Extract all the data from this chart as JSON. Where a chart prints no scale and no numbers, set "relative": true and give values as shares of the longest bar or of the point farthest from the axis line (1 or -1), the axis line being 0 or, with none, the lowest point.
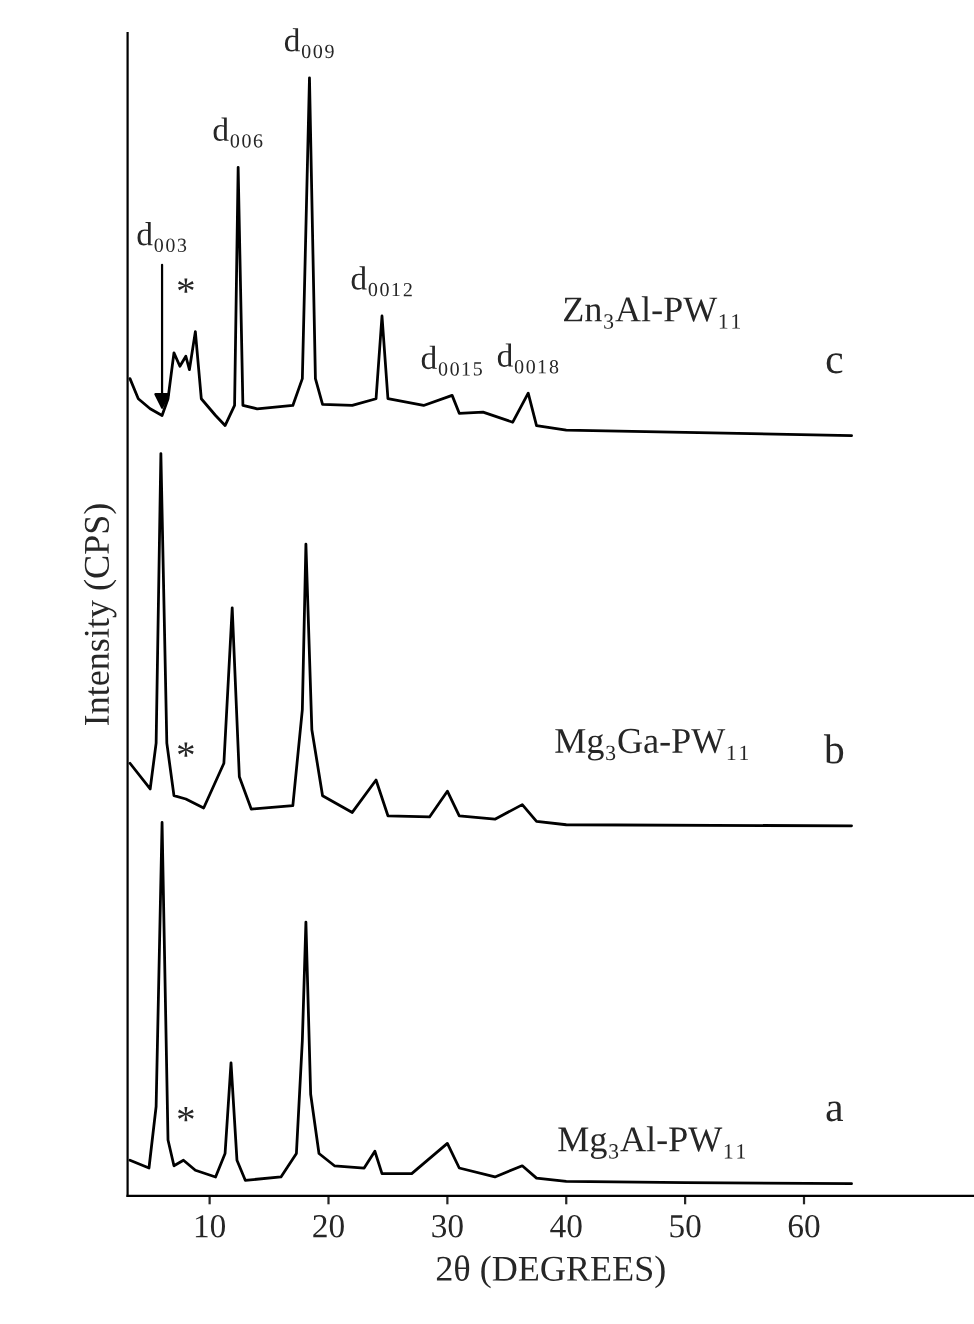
{
  "chart_data": {
    "type": "line",
    "relative": true,
    "xlabel": "2θ (DEGREES)",
    "ylabel": "Intensity (CPS)",
    "xlim": [
      3.1,
      74.3
    ],
    "xticks": [
      10,
      20,
      30,
      40,
      50,
      60
    ],
    "grid": false,
    "legend": false,
    "marker": "none",
    "line_style": "solid",
    "series": [
      {
        "name": "Mg₃Al-PW₁₁",
        "color": "#000000",
        "x": [
          3.3,
          4.9,
          5.5,
          6.0,
          6.5,
          7.0,
          7.8,
          8.8,
          10.5,
          11.3,
          11.8,
          12.3,
          13.0,
          16.0,
          17.3,
          17.8,
          18.1,
          18.5,
          19.2,
          20.5,
          23.0,
          23.9,
          24.5,
          27.0,
          30.0,
          31.0,
          34.0,
          36.3,
          37.5,
          40.0,
          50.0,
          64.0
        ],
        "values": [
          0.032,
          0.025,
          0.08,
          0.334,
          0.05,
          0.027,
          0.032,
          0.023,
          0.017,
          0.038,
          0.119,
          0.032,
          0.014,
          0.017,
          0.038,
          0.139,
          0.245,
          0.091,
          0.038,
          0.027,
          0.025,
          0.04,
          0.02,
          0.02,
          0.047,
          0.025,
          0.017,
          0.027,
          0.016,
          0.013,
          0.012,
          0.011
        ]
      },
      {
        "name": "Mg₃Ga-PW₁₁",
        "color": "#000000",
        "x": [
          3.3,
          5.0,
          5.5,
          5.9,
          6.4,
          7.0,
          8.0,
          9.5,
          11.2,
          11.9,
          12.5,
          13.5,
          17.0,
          17.8,
          18.1,
          18.6,
          19.5,
          22.0,
          24.0,
          25.0,
          28.5,
          30.0,
          31.0,
          34.0,
          36.3,
          37.5,
          40.0,
          64.0
        ],
        "values": [
          0.387,
          0.364,
          0.405,
          0.664,
          0.405,
          0.358,
          0.355,
          0.347,
          0.387,
          0.526,
          0.375,
          0.346,
          0.349,
          0.435,
          0.583,
          0.417,
          0.358,
          0.343,
          0.372,
          0.34,
          0.339,
          0.362,
          0.34,
          0.337,
          0.35,
          0.335,
          0.332,
          0.331
        ]
      },
      {
        "name": "Zn₃Al-PW₁₁",
        "color": "#000000",
        "x": [
          3.3,
          4.0,
          5.0,
          6.0,
          6.5,
          7.0,
          7.5,
          8.0,
          8.3,
          8.8,
          9.3,
          10.5,
          11.3,
          12.1,
          12.4,
          12.8,
          14.0,
          17.0,
          17.8,
          18.4,
          18.9,
          19.5,
          22.0,
          24.0,
          24.5,
          25.0,
          28.0,
          30.4,
          31.0,
          33.0,
          35.5,
          36.8,
          37.5,
          40.0,
          50.0,
          64.0
        ],
        "values": [
          0.731,
          0.713,
          0.704,
          0.698,
          0.713,
          0.754,
          0.742,
          0.751,
          0.739,
          0.773,
          0.713,
          0.698,
          0.689,
          0.707,
          0.92,
          0.707,
          0.704,
          0.707,
          0.731,
          1.0,
          0.731,
          0.708,
          0.707,
          0.713,
          0.787,
          0.713,
          0.707,
          0.716,
          0.7,
          0.701,
          0.692,
          0.718,
          0.689,
          0.685,
          0.683,
          0.68
        ]
      }
    ],
    "annotations": [
      {
        "text": "d₀₀₃",
        "x": 6.0,
        "y": 0.698
      },
      {
        "text": "d₀₀₆",
        "x": 12.4,
        "y": 0.92
      },
      {
        "text": "d₀₀₉",
        "x": 18.4,
        "y": 1.0
      },
      {
        "text": "d₀₀₁₂",
        "x": 24.5,
        "y": 0.787
      },
      {
        "text": "d₀₀₁₅",
        "x": 30.4,
        "y": 0.716
      },
      {
        "text": "d₀₀₁₈",
        "x": 36.8,
        "y": 0.718
      },
      {
        "text": "*",
        "x": 8.0,
        "y": 0.773
      },
      {
        "text": "*",
        "x": 8.0,
        "y": 0.355
      },
      {
        "text": "*",
        "x": 8.0,
        "y": 0.032
      },
      "c",
      "b",
      "a"
    ]
  }
}
